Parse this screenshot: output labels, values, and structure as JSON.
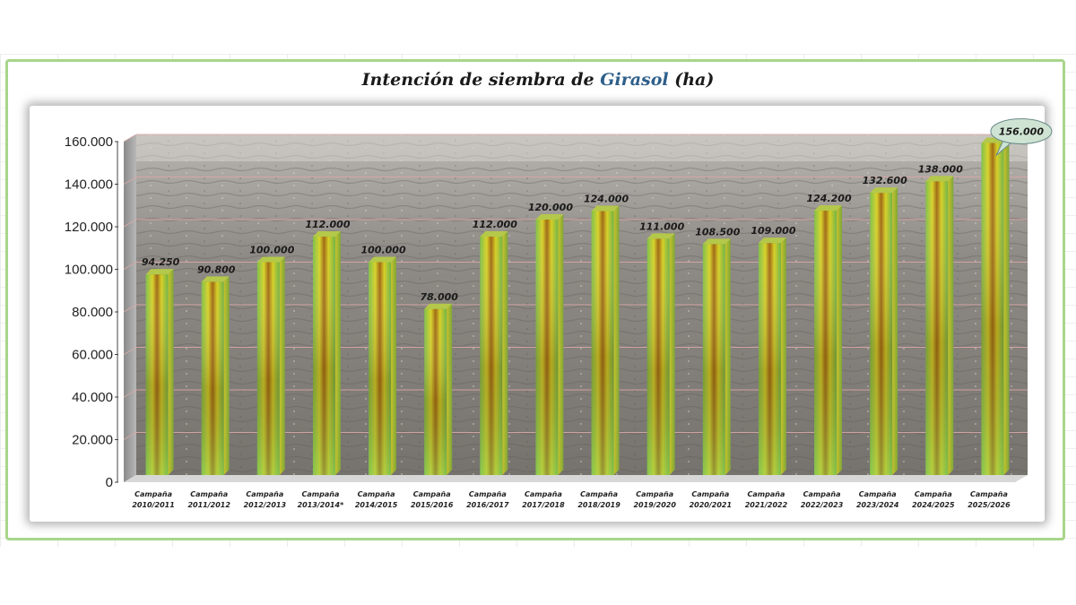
{
  "title": {
    "prefix": "Intención de siembra de ",
    "highlight": "Girasol",
    "suffix": " (ha)"
  },
  "colors": {
    "frame_border": "#a8d58a",
    "highlight_title": "#2e5f8a",
    "callout_fill": "#cfe3d2",
    "gridline": "#d9a8a8"
  },
  "chart_data": {
    "type": "bar",
    "title": "Intención de siembra de Girasol (ha)",
    "categories": [
      [
        "Campaña",
        "2010/2011"
      ],
      [
        "Campaña",
        "2011/2012"
      ],
      [
        "Campaña",
        "2012/2013"
      ],
      [
        "Campaña",
        "2013/2014*"
      ],
      [
        "Campaña",
        "2014/2015"
      ],
      [
        "Campaña",
        "2015/2016"
      ],
      [
        "Campaña",
        "2016/2017"
      ],
      [
        "Campaña",
        "2017/2018"
      ],
      [
        "Campaña",
        "2018/2019"
      ],
      [
        "Campaña",
        "2019/2020"
      ],
      [
        "Campaña",
        "2020/2021"
      ],
      [
        "Campaña",
        "2021/2022"
      ],
      [
        "Campaña",
        "2022/2023"
      ],
      [
        "Campaña",
        "2023/2024"
      ],
      [
        "Campaña",
        "2024/2025"
      ],
      [
        "Campaña",
        "2025/2026"
      ]
    ],
    "values": [
      94250,
      90800,
      100000,
      112000,
      100000,
      78000,
      112000,
      120000,
      124000,
      111000,
      108500,
      109000,
      124200,
      132600,
      138000,
      156000
    ],
    "value_labels": [
      "94.250",
      "90.800",
      "100.000",
      "112.000",
      "100.000",
      "78.000",
      "112.000",
      "120.000",
      "124.000",
      "111.000",
      "108.500",
      "109.000",
      "124.200",
      "132.600",
      "138.000",
      "156.000"
    ],
    "highlighted_index": 15,
    "y_ticks": [
      0,
      20000,
      40000,
      60000,
      80000,
      100000,
      120000,
      140000,
      160000
    ],
    "y_tick_labels": [
      "0",
      "20.000",
      "40.000",
      "60.000",
      "80.000",
      "100.000",
      "120.000",
      "140.000",
      "160.000"
    ],
    "ylim": [
      0,
      160000
    ],
    "grid": true,
    "legend": "none",
    "background": "photo of plowed field (grey)",
    "bar_fill": "photo of sunflower plants (green/yellow)"
  }
}
